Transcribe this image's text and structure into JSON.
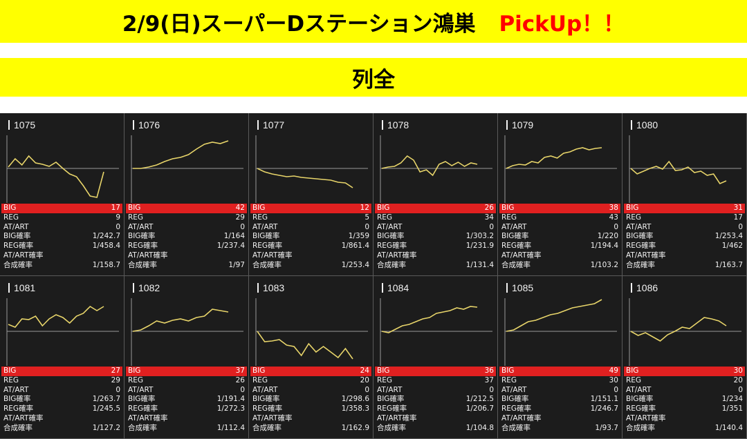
{
  "header": {
    "title": "2/9(日)スーパーDステーション鴻巣",
    "pickup": "PickUp！！",
    "subtitle": "列全"
  },
  "labels": {
    "big": "BIG",
    "reg": "REG",
    "atart": "AT/ART",
    "big_rate": "BIG確率",
    "reg_rate": "REG確率",
    "atart_rate": "AT/ART確率",
    "combined_rate": "合成確率"
  },
  "colors": {
    "banner": "#ffff00",
    "pickup": "#ff0000",
    "big_row": "#e02020",
    "line": "#e8d56a",
    "background": "#1a1a1a"
  },
  "machines": [
    {
      "number": "1075",
      "big": "17",
      "reg": "9",
      "atart": "0",
      "big_rate": "1/242.7",
      "reg_rate": "1/458.4",
      "atart_rate": "",
      "combined_rate": "1/158.7",
      "trend": [
        2,
        14,
        5,
        18,
        8,
        6,
        3,
        9,
        0,
        -8,
        -12,
        -25,
        -40,
        -42,
        -5
      ]
    },
    {
      "number": "1076",
      "big": "42",
      "reg": "29",
      "atart": "0",
      "big_rate": "1/164",
      "reg_rate": "1/237.4",
      "atart_rate": "",
      "combined_rate": "1/97",
      "trend": [
        0,
        0,
        2,
        5,
        10,
        14,
        16,
        20,
        28,
        35,
        38,
        36,
        40
      ]
    },
    {
      "number": "1077",
      "big": "12",
      "reg": "5",
      "atart": "0",
      "big_rate": "1/359",
      "reg_rate": "1/861.4",
      "atart_rate": "",
      "combined_rate": "1/253.4",
      "trend": [
        0,
        -5,
        -8,
        -10,
        -12,
        -11,
        -13,
        -14,
        -15,
        -16,
        -17,
        -20,
        -21,
        -28
      ]
    },
    {
      "number": "1078",
      "big": "26",
      "reg": "34",
      "atart": "0",
      "big_rate": "1/303.2",
      "reg_rate": "1/231.9",
      "atart_rate": "",
      "combined_rate": "1/131.4",
      "trend": [
        0,
        2,
        3,
        8,
        18,
        12,
        -5,
        -2,
        -10,
        6,
        10,
        4,
        9,
        3,
        8,
        6
      ]
    },
    {
      "number": "1079",
      "big": "38",
      "reg": "43",
      "atart": "0",
      "big_rate": "1/220",
      "reg_rate": "1/194.4",
      "atart_rate": "",
      "combined_rate": "1/103.2",
      "trend": [
        0,
        4,
        6,
        5,
        10,
        8,
        16,
        18,
        15,
        22,
        24,
        28,
        30,
        27,
        29,
        30
      ]
    },
    {
      "number": "1080",
      "big": "31",
      "reg": "17",
      "atart": "0",
      "big_rate": "1/253.4",
      "reg_rate": "1/462",
      "atart_rate": "",
      "combined_rate": "1/163.7",
      "trend": [
        0,
        -8,
        -4,
        0,
        3,
        -1,
        10,
        -3,
        -2,
        2,
        -6,
        -4,
        -10,
        -8,
        -22,
        -18
      ]
    },
    {
      "number": "1081",
      "big": "27",
      "reg": "29",
      "atart": "0",
      "big_rate": "1/263.7",
      "reg_rate": "1/245.5",
      "atart_rate": "",
      "combined_rate": "1/127.2",
      "trend": [
        10,
        6,
        18,
        17,
        22,
        8,
        18,
        24,
        20,
        12,
        22,
        26,
        36,
        30,
        36
      ]
    },
    {
      "number": "1082",
      "big": "37",
      "reg": "26",
      "atart": "0",
      "big_rate": "1/191.4",
      "reg_rate": "1/272.3",
      "atart_rate": "",
      "combined_rate": "1/112.4",
      "trend": [
        0,
        2,
        8,
        15,
        12,
        16,
        18,
        15,
        20,
        22,
        32,
        30,
        28
      ]
    },
    {
      "number": "1083",
      "big": "24",
      "reg": "20",
      "atart": "0",
      "big_rate": "1/298.6",
      "reg_rate": "1/358.3",
      "atart_rate": "",
      "combined_rate": "1/162.9",
      "trend": [
        0,
        -15,
        -14,
        -12,
        -20,
        -22,
        -35,
        -18,
        -30,
        -22,
        -30,
        -38,
        -25,
        -40
      ]
    },
    {
      "number": "1084",
      "big": "36",
      "reg": "37",
      "atart": "0",
      "big_rate": "1/212.5",
      "reg_rate": "1/206.7",
      "atart_rate": "",
      "combined_rate": "1/104.8",
      "trend": [
        0,
        -2,
        3,
        8,
        10,
        14,
        18,
        20,
        26,
        28,
        30,
        34,
        32,
        36,
        35
      ]
    },
    {
      "number": "1085",
      "big": "49",
      "reg": "30",
      "atart": "0",
      "big_rate": "1/151.1",
      "reg_rate": "1/246.7",
      "atart_rate": "",
      "combined_rate": "1/93.7",
      "trend": [
        0,
        2,
        8,
        14,
        16,
        20,
        24,
        26,
        30,
        34,
        36,
        38,
        40,
        46
      ]
    },
    {
      "number": "1086",
      "big": "30",
      "reg": "20",
      "atart": "0",
      "big_rate": "1/234",
      "reg_rate": "1/351",
      "atart_rate": "",
      "combined_rate": "1/140.4",
      "trend": [
        0,
        -6,
        -2,
        -8,
        -14,
        -5,
        0,
        6,
        4,
        12,
        20,
        18,
        15,
        8
      ]
    }
  ]
}
